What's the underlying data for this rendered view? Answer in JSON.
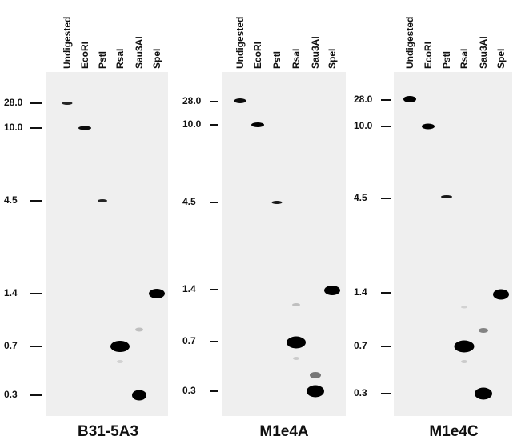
{
  "panels": [
    {
      "name": "B31-5A3",
      "lanes": [
        "Undigested",
        "EcoRI",
        "PstI",
        "RsaI",
        "Sau3AI",
        "SpeI"
      ],
      "markers": [
        "28.0",
        "10.0",
        "4.5",
        "1.4",
        "0.7",
        "0.3"
      ]
    },
    {
      "name": "M1e4A",
      "lanes": [
        "Undigested",
        "EcoRI",
        "PstI",
        "RsaI",
        "Sau3AI",
        "SpeI"
      ],
      "markers": [
        "28.0",
        "10.0",
        "4.5",
        "1.4",
        "0.7",
        "0.3"
      ]
    },
    {
      "name": "M1e4C",
      "lanes": [
        "Undigested",
        "EcoRI",
        "PstI",
        "RsaI",
        "Sau3AI",
        "SpeI"
      ],
      "markers": [
        "28.0",
        "10.0",
        "4.5",
        "1.4",
        "0.7",
        "0.3"
      ]
    }
  ]
}
